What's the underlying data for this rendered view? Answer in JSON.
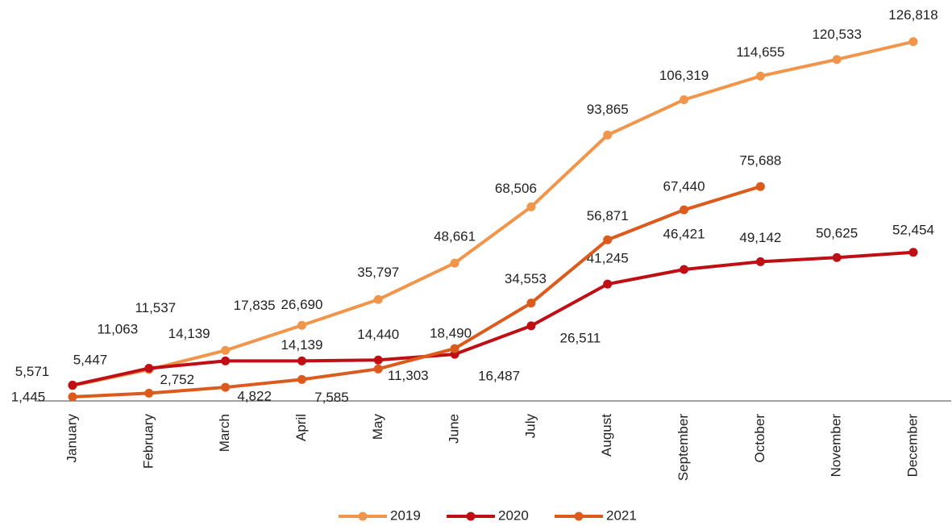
{
  "chart_data": {
    "type": "line",
    "categories": [
      "January",
      "February",
      "March",
      "April",
      "May",
      "June",
      "July",
      "August",
      "September",
      "October",
      "November",
      "December"
    ],
    "series": [
      {
        "name": "2019",
        "color": "#f0954a",
        "values": [
          5447,
          11063,
          17835,
          26690,
          35797,
          48661,
          68506,
          93865,
          106319,
          114655,
          120533,
          126818
        ],
        "value_labels": [
          "5,447",
          "11,063",
          "17,835",
          "26,690",
          "35,797",
          "48,661",
          "68,506",
          "93,865",
          "106,319",
          "114,655",
          "120,533",
          "126,818"
        ]
      },
      {
        "name": "2020",
        "color": "#c00f14",
        "values": [
          5571,
          11537,
          14139,
          14139,
          14440,
          16487,
          26511,
          41245,
          46421,
          49142,
          50625,
          52454
        ],
        "value_labels": [
          "5,571",
          "11,537",
          "14,139",
          "14,139",
          "14,440",
          "16,487",
          "26,511",
          "41,245",
          "46,421",
          "49,142",
          "50,625",
          "52,454"
        ]
      },
      {
        "name": "2021",
        "color": "#dc5a1c",
        "values": [
          1445,
          2752,
          4822,
          7585,
          11303,
          18490,
          34553,
          56871,
          67440,
          75688,
          null,
          null
        ],
        "value_labels": [
          "1,445",
          "2,752",
          "4,822",
          "7,585",
          "11,303",
          "18,490",
          "34,553",
          "56,871",
          "67,440",
          "75,688",
          null,
          null
        ]
      }
    ],
    "ylim": [
      0,
      127000
    ],
    "legend": "bottom"
  }
}
